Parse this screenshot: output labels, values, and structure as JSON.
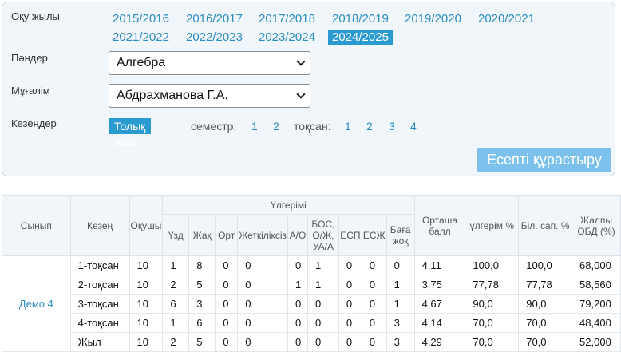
{
  "filters": {
    "year_label": "Оқу жылы",
    "years": [
      "2015/2016",
      "2016/2017",
      "2017/2018",
      "2018/2019",
      "2019/2020",
      "2020/2021",
      "2021/2022",
      "2022/2023",
      "2023/2024",
      "2024/2025"
    ],
    "active_year": "2024/2025",
    "subject_label": "Пәндер",
    "subject_value": "Алгебра",
    "teacher_label": "Мұғалім",
    "teacher_value": "Абдрахманова Г.А.",
    "period_label": "Кезеңдер",
    "full_year": "Толық жыл",
    "semester_label": "семестр:",
    "semesters": [
      "1",
      "2"
    ],
    "quarter_label": "тоқсан:",
    "quarters": [
      "1",
      "2",
      "3",
      "4"
    ],
    "build_button": "Есепті құрастыру"
  },
  "table": {
    "headers": {
      "class": "Сынып",
      "period": "Кезең",
      "students": "Оқушы",
      "progress_group": "Үлгерімі",
      "sub": [
        "Үзд",
        "Жақ",
        "Орт",
        "Жеткіліксіз",
        "А/Ө",
        "БОС, О/Ж, УА/А",
        "ЕСП",
        "ЕСЖ",
        "Баға жоқ"
      ],
      "avg": "Орташа балл",
      "progress_pct": "үлгерім %",
      "quality_pct": "Біл. сап. %",
      "total": "Жалпы ОБД (%)"
    },
    "class_name": "Демо 4",
    "rows": [
      {
        "period": "1-тоқсан",
        "students": "10",
        "vals": [
          "1",
          "8",
          "0",
          "0",
          "0",
          "1",
          "0",
          "0",
          "0"
        ],
        "avg": "4,11",
        "progress": "100,0",
        "quality": "100,0",
        "total": "68,000"
      },
      {
        "period": "2-тоқсан",
        "students": "10",
        "vals": [
          "2",
          "5",
          "0",
          "0",
          "1",
          "1",
          "0",
          "0",
          "1"
        ],
        "avg": "3,75",
        "progress": "77,78",
        "quality": "77,78",
        "total": "58,560"
      },
      {
        "period": "3-тоқсан",
        "students": "10",
        "vals": [
          "6",
          "3",
          "0",
          "0",
          "0",
          "0",
          "0",
          "0",
          "1"
        ],
        "avg": "4,67",
        "progress": "90,0",
        "quality": "90,0",
        "total": "79,200"
      },
      {
        "period": "4-тоқсан",
        "students": "10",
        "vals": [
          "1",
          "6",
          "0",
          "0",
          "0",
          "0",
          "0",
          "0",
          "3"
        ],
        "avg": "4,14",
        "progress": "70,0",
        "quality": "70,0",
        "total": "48,400"
      },
      {
        "period": "Жыл",
        "students": "10",
        "vals": [
          "2",
          "5",
          "0",
          "0",
          "0",
          "0",
          "0",
          "0",
          "3"
        ],
        "avg": "4,29",
        "progress": "70,0",
        "quality": "70,0",
        "total": "52,000"
      }
    ]
  }
}
